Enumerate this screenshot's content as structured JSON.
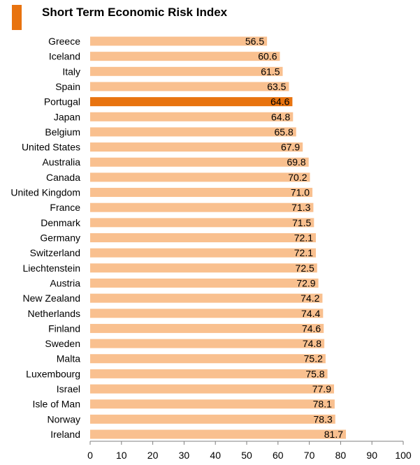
{
  "title": "Short Term Economic Risk Index",
  "colors": {
    "bar": "#f9c08f",
    "highlight": "#e8730f",
    "title_accent": "#e8730f",
    "axis": "#7f7f7f",
    "text": "#000000"
  },
  "chart_data": {
    "type": "bar",
    "orientation": "horizontal",
    "title": "Short Term Economic Risk Index",
    "xlabel": "",
    "ylabel": "",
    "xlim": [
      0,
      100
    ],
    "x_ticks": [
      0,
      10,
      20,
      30,
      40,
      50,
      60,
      70,
      80,
      90,
      100
    ],
    "grid": false,
    "highlight_category": "Portugal",
    "categories": [
      "Greece",
      "Iceland",
      "Italy",
      "Spain",
      "Portugal",
      "Japan",
      "Belgium",
      "United States",
      "Australia",
      "Canada",
      "United Kingdom",
      "France",
      "Denmark",
      "Germany",
      "Switzerland",
      "Liechtenstein",
      "Austria",
      "New Zealand",
      "Netherlands",
      "Finland",
      "Sweden",
      "Malta",
      "Luxembourg",
      "Israel",
      "Isle of Man",
      "Norway",
      "Ireland"
    ],
    "values": [
      56.5,
      60.6,
      61.5,
      63.5,
      64.6,
      64.8,
      65.8,
      67.9,
      69.8,
      70.2,
      71.0,
      71.3,
      71.5,
      72.1,
      72.1,
      72.5,
      72.9,
      74.2,
      74.4,
      74.6,
      74.8,
      75.2,
      75.8,
      77.9,
      78.1,
      78.3,
      81.7
    ],
    "value_labels": [
      "56.5",
      "60.6",
      "61.5",
      "63.5",
      "64.6",
      "64.8",
      "65.8",
      "67.9",
      "69.8",
      "70.2",
      "71.0",
      "71.3",
      "71.5",
      "72.1",
      "72.1",
      "72.5",
      "72.9",
      "74.2",
      "74.4",
      "74.6",
      "74.8",
      "75.2",
      "75.8",
      "77.9",
      "78.1",
      "78.3",
      "81.7"
    ]
  }
}
